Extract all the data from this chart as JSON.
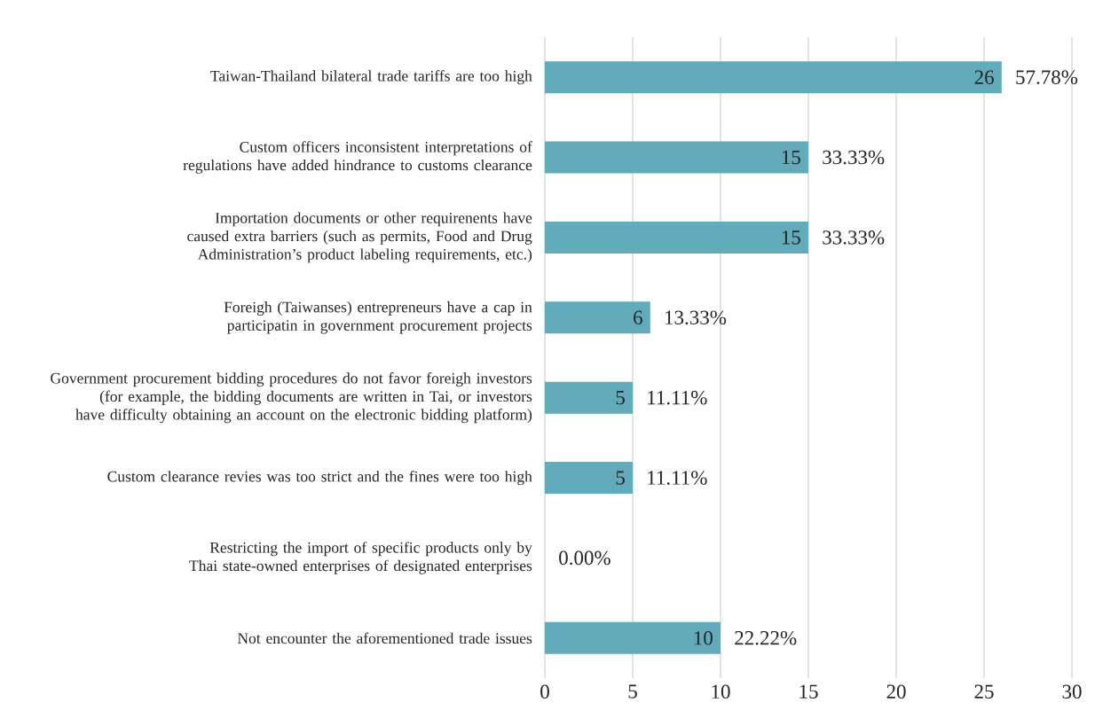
{
  "chart_data": {
    "type": "bar",
    "orientation": "horizontal",
    "categories": [
      "Taiwan-Thailand bilateral trade tariffs are too high",
      "Custom officers inconsistent interpretations of regulations have added hindrance to customs clearance",
      "Importation documents or other requirenents have caused extra barriers (such as permits, Food and Drug Administration’s product labeling requirements, etc.)",
      "Foreigh (Taiwanses) entrepreneurs have a cap in participatin in government procurement projects",
      "Government procurement bidding procedures do not favor foreigh investors (for example, the bidding documents are written in Tai, or investors have difficulty obtaining an account on the electronic bidding platform)",
      "Custom clearance revies was too strict and the fines were too high",
      "Restricting the import of specific products only by Thai state-owned enterprises of designated enterprises",
      "Not encounter the aforementioned trade issues"
    ],
    "values": [
      26,
      15,
      15,
      6,
      5,
      5,
      0,
      10
    ],
    "value_labels": [
      "26",
      "15",
      "15",
      "6",
      "5",
      "5",
      null,
      "10"
    ],
    "color": "#62abbb",
    "xlim": [
      0,
      30
    ],
    "xticks": [
      0,
      5,
      10,
      15,
      20,
      25,
      30
    ],
    "grid": "x",
    "annotations": [
      {
        "text": "57.78%",
        "x": 26,
        "y": "Taiwan-Thailand bilateral trade tariffs are too high"
      },
      {
        "text": "33.33%",
        "x": 15,
        "y": "Custom officers inconsistent interpretations of regulations have added hindrance to customs clearance"
      },
      {
        "text": "33.33%",
        "x": 15,
        "y": "Importation documents or other requirenents have caused extra barriers (such as permits, Food and Drug Administration’s product labeling requirements, etc.)"
      },
      {
        "text": "13.33%",
        "x": 6,
        "y": "Foreigh (Taiwanses) entrepreneurs have a cap in participatin in government procurement projects"
      },
      {
        "text": "11.11%",
        "x": 5,
        "y": "Government procurement bidding procedures do not favor foreigh investors (for example, the bidding documents are written in Tai, or investors have difficulty obtaining an account on the electronic bidding platform)"
      },
      {
        "text": "11.11%",
        "x": 5,
        "y": "Custom clearance revies was too strict and the fines were too high"
      },
      {
        "text": "0.00%",
        "x": 0,
        "y": "Restricting the import of specific products only by Thai state-owned enterprises of designated enterprises"
      },
      {
        "text": "22.22%",
        "x": 10,
        "y": "Not encounter the aforementioned trade issues"
      }
    ]
  }
}
